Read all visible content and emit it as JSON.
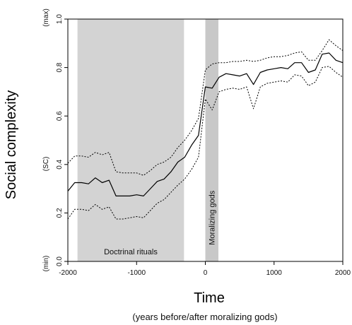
{
  "chart_data": {
    "type": "line",
    "title": "",
    "ylabel": "Social complexity",
    "ylabel_sub": "(SC)",
    "ylabel_max": "(max)",
    "ylabel_min": "(min)",
    "xlabel": "Time",
    "xlabel_sub": "(years before/after moralizing gods)",
    "xlim": [
      -2000,
      2000
    ],
    "ylim": [
      0.0,
      1.0
    ],
    "xticks": [
      -2000,
      -1000,
      0,
      1000,
      2000
    ],
    "yticks": [
      0.0,
      0.2,
      0.4,
      0.6,
      0.8,
      1.0
    ],
    "xtick_labels": [
      "-2000",
      "-1000",
      "0",
      "1000",
      "2000"
    ],
    "ytick_labels": [
      "0.0",
      "0.2",
      "0.4",
      "0.6",
      "0.8",
      "1.0"
    ],
    "grid": false,
    "bands": [
      {
        "label": "Doctrinal rituals",
        "from": -1860,
        "to": -310,
        "color": "#d3d3d3"
      },
      {
        "label": "Moralizing gods",
        "from": 0,
        "to": 190,
        "color": "#c8c8c8"
      }
    ],
    "x": [
      -2000,
      -1900,
      -1800,
      -1700,
      -1600,
      -1500,
      -1400,
      -1300,
      -1200,
      -1100,
      -1000,
      -900,
      -800,
      -700,
      -600,
      -500,
      -400,
      -300,
      -200,
      -100,
      0,
      100,
      200,
      300,
      400,
      500,
      600,
      700,
      800,
      900,
      1000,
      1100,
      1200,
      1300,
      1400,
      1500,
      1600,
      1700,
      1800,
      1900,
      2000
    ],
    "series": [
      {
        "name": "mean",
        "style": "solid",
        "values": [
          0.29,
          0.325,
          0.325,
          0.32,
          0.345,
          0.325,
          0.335,
          0.27,
          0.27,
          0.27,
          0.275,
          0.27,
          0.3,
          0.33,
          0.34,
          0.37,
          0.41,
          0.43,
          0.48,
          0.52,
          0.72,
          0.715,
          0.76,
          0.775,
          0.77,
          0.765,
          0.775,
          0.73,
          0.78,
          0.79,
          0.795,
          0.8,
          0.795,
          0.82,
          0.82,
          0.78,
          0.79,
          0.855,
          0.86,
          0.83,
          0.82
        ]
      },
      {
        "name": "upper bound",
        "style": "dotted",
        "values": [
          0.405,
          0.435,
          0.435,
          0.43,
          0.45,
          0.44,
          0.45,
          0.37,
          0.365,
          0.365,
          0.365,
          0.355,
          0.375,
          0.4,
          0.41,
          0.43,
          0.47,
          0.5,
          0.54,
          0.59,
          0.79,
          0.815,
          0.82,
          0.82,
          0.825,
          0.825,
          0.83,
          0.825,
          0.83,
          0.84,
          0.845,
          0.845,
          0.85,
          0.86,
          0.865,
          0.83,
          0.83,
          0.87,
          0.915,
          0.89,
          0.87
        ]
      },
      {
        "name": "lower bound",
        "style": "dotted",
        "values": [
          0.175,
          0.215,
          0.215,
          0.21,
          0.235,
          0.215,
          0.225,
          0.175,
          0.175,
          0.18,
          0.185,
          0.18,
          0.21,
          0.24,
          0.255,
          0.285,
          0.315,
          0.34,
          0.38,
          0.43,
          0.67,
          0.625,
          0.7,
          0.71,
          0.715,
          0.71,
          0.72,
          0.63,
          0.72,
          0.735,
          0.74,
          0.745,
          0.74,
          0.77,
          0.765,
          0.725,
          0.74,
          0.8,
          0.805,
          0.78,
          0.76
        ]
      }
    ]
  }
}
